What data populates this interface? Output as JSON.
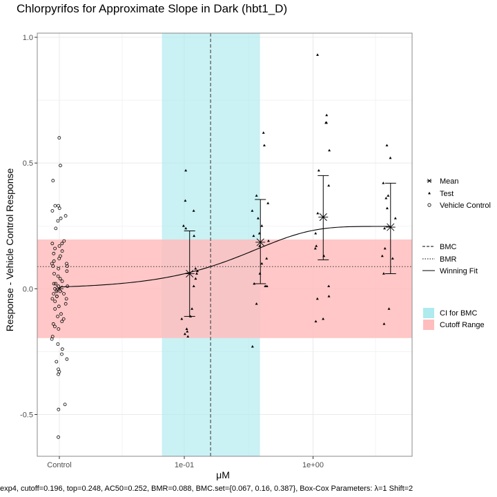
{
  "chart_data": {
    "type": "scatter",
    "title": "Chlorpyrifos for Approximate Slope in Dark (hbt1_D)",
    "xlabel": "μM",
    "ylabel": "Response - Vehicle Control Response",
    "x_scale": "log",
    "ylim": [
      -0.67,
      1.02
    ],
    "y_ticks": [
      -0.5,
      0.0,
      0.5,
      1.0
    ],
    "y_tick_labels": [
      "-0.5",
      "0.0",
      "0.5",
      "1.0"
    ],
    "x_tick_labels": [
      "Control",
      "1e-01",
      "1e+00"
    ],
    "grid": true,
    "legend_position": "right",
    "caption": "exp4, cutoff=0.196, top=0.248, AC50=0.252, BMR=0.088, BMC.set={0.067, 0.16, 0.387}, Box-Cox Parameters: λ=1 Shift=2",
    "ci_bmc": [
      0.067,
      0.387
    ],
    "bmc": 0.16,
    "bmr": 0.088,
    "cutoff": 0.196,
    "fit": {
      "model": "exp4",
      "top": 0.248,
      "ac50": 0.252,
      "control_value": 0.005
    },
    "legend": {
      "shapes": [
        "Mean",
        "Test",
        "Vehicle Control"
      ],
      "lines": [
        "BMC",
        "BMR",
        "Winning Fit"
      ],
      "fills": [
        "CI for BMC",
        "Cutoff Range"
      ]
    },
    "colors": {
      "ci_fill": "#aeeaee",
      "cutoff_fill": "#ffbdbd",
      "grid": "#ebebeb",
      "panel_border": "#888888"
    },
    "vehicle_control": [
      0.6,
      0.49,
      0.43,
      0.33,
      0.33,
      0.32,
      0.31,
      0.29,
      0.28,
      0.27,
      0.24,
      0.19,
      0.18,
      0.18,
      0.17,
      0.16,
      0.15,
      0.14,
      0.13,
      0.12,
      0.11,
      0.1,
      0.1,
      0.09,
      0.09,
      0.08,
      0.07,
      0.06,
      0.05,
      0.04,
      0.03,
      0.02,
      0.02,
      0.01,
      0.01,
      0.0,
      -0.01,
      -0.01,
      -0.02,
      -0.02,
      -0.03,
      -0.03,
      -0.04,
      -0.04,
      -0.05,
      -0.06,
      -0.07,
      -0.08,
      -0.1,
      -0.11,
      -0.12,
      -0.13,
      -0.14,
      -0.15,
      -0.16,
      -0.19,
      -0.2,
      -0.22,
      -0.24,
      -0.26,
      -0.28,
      -0.29,
      -0.32,
      -0.33,
      -0.34,
      -0.46,
      -0.48,
      -0.59
    ],
    "test_groups": [
      {
        "conc": 0.11,
        "mean": 0.06,
        "err_upper": 0.23,
        "err_lower": -0.11,
        "points": [
          0.47,
          0.35,
          0.31,
          0.25,
          0.24,
          0.21,
          0.08,
          0.07,
          0.06,
          0.04,
          0.01,
          -0.08,
          -0.11,
          -0.12,
          -0.16,
          -0.17,
          -0.18,
          -0.19
        ]
      },
      {
        "conc": 0.39,
        "mean": 0.185,
        "err_upper": 0.355,
        "err_lower": 0.02,
        "points": [
          0.62,
          0.57,
          0.37,
          0.34,
          0.31,
          0.28,
          0.25,
          0.22,
          0.21,
          0.19,
          0.17,
          0.12,
          0.1,
          0.06,
          0.02,
          0.01,
          0.01,
          -0.06,
          -0.23
        ]
      },
      {
        "conc": 1.2,
        "mean": 0.285,
        "err_upper": 0.45,
        "err_lower": 0.115,
        "points": [
          0.93,
          0.69,
          0.66,
          0.66,
          0.55,
          0.47,
          0.41,
          0.3,
          0.22,
          0.17,
          0.16,
          0.13,
          0.01,
          -0.03,
          -0.04,
          -0.12,
          -0.13
        ]
      },
      {
        "conc": 4.0,
        "mean": 0.245,
        "err_upper": 0.42,
        "err_lower": 0.06,
        "points": [
          0.57,
          0.52,
          0.42,
          0.37,
          0.36,
          0.32,
          0.28,
          0.24,
          0.16,
          0.13,
          0.12,
          0.06,
          -0.08,
          -0.14
        ]
      }
    ]
  }
}
